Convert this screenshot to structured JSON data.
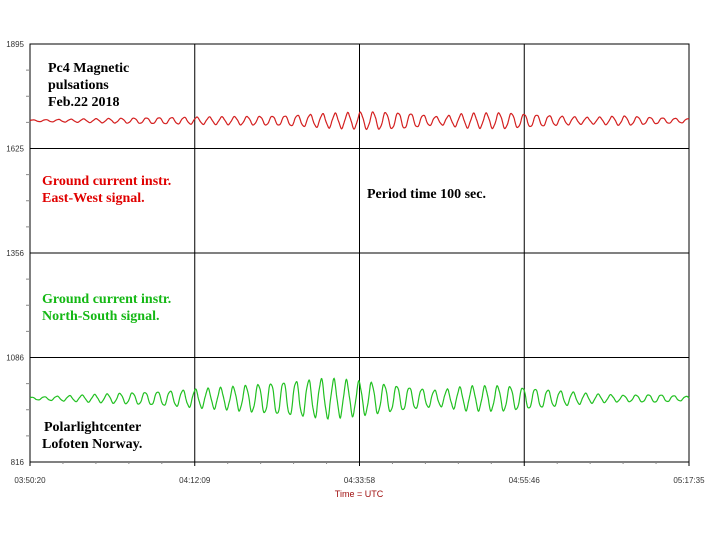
{
  "chart_data": {
    "type": "line",
    "ylim": [
      816,
      1895
    ],
    "y_ticks": [
      "1895",
      "1625",
      "1356",
      "1086",
      "816"
    ],
    "x_ticks": [
      "03:50:20",
      "04:12:09",
      "04:33:58",
      "04:55:46",
      "05:17:35"
    ],
    "xlabel": "Time = UTC",
    "grid": true,
    "series": [
      {
        "color": "#d42020",
        "baseline": 1697,
        "amplitude_envelope": [
          [
            0,
            2
          ],
          [
            10,
            5
          ],
          [
            20,
            8
          ],
          [
            30,
            10
          ],
          [
            38,
            12
          ],
          [
            45,
            18
          ],
          [
            52,
            22
          ],
          [
            57,
            20
          ],
          [
            62,
            10
          ],
          [
            66,
            18
          ],
          [
            72,
            20
          ],
          [
            80,
            12
          ],
          [
            85,
            8
          ],
          [
            90,
            12
          ],
          [
            95,
            8
          ],
          [
            100,
            5
          ]
        ],
        "period_seconds": 100
      },
      {
        "color": "#22c022",
        "baseline": 980,
        "amplitude_envelope": [
          [
            0,
            3
          ],
          [
            10,
            10
          ],
          [
            20,
            18
          ],
          [
            30,
            28
          ],
          [
            38,
            42
          ],
          [
            45,
            50
          ],
          [
            52,
            40
          ],
          [
            57,
            30
          ],
          [
            62,
            20
          ],
          [
            66,
            30
          ],
          [
            72,
            32
          ],
          [
            80,
            20
          ],
          [
            85,
            12
          ],
          [
            90,
            8
          ],
          [
            95,
            10
          ],
          [
            100,
            5
          ]
        ],
        "period_seconds": 100
      }
    ]
  },
  "annotations": {
    "title": "Pc4 Magnetic\npulsations\nFeb.22 2018",
    "ew_label": "Ground current instr.\nEast-West signal.",
    "period": "Period time 100 sec.",
    "ns_label": "Ground current instr.\nNorth-South signal.",
    "credit": "Polarlightcenter\nLofoten Norway."
  },
  "colors": {
    "grid": "#000000",
    "minor_tick": "#888888",
    "axis_text": "#333333",
    "xlabel": "#a01010"
  }
}
